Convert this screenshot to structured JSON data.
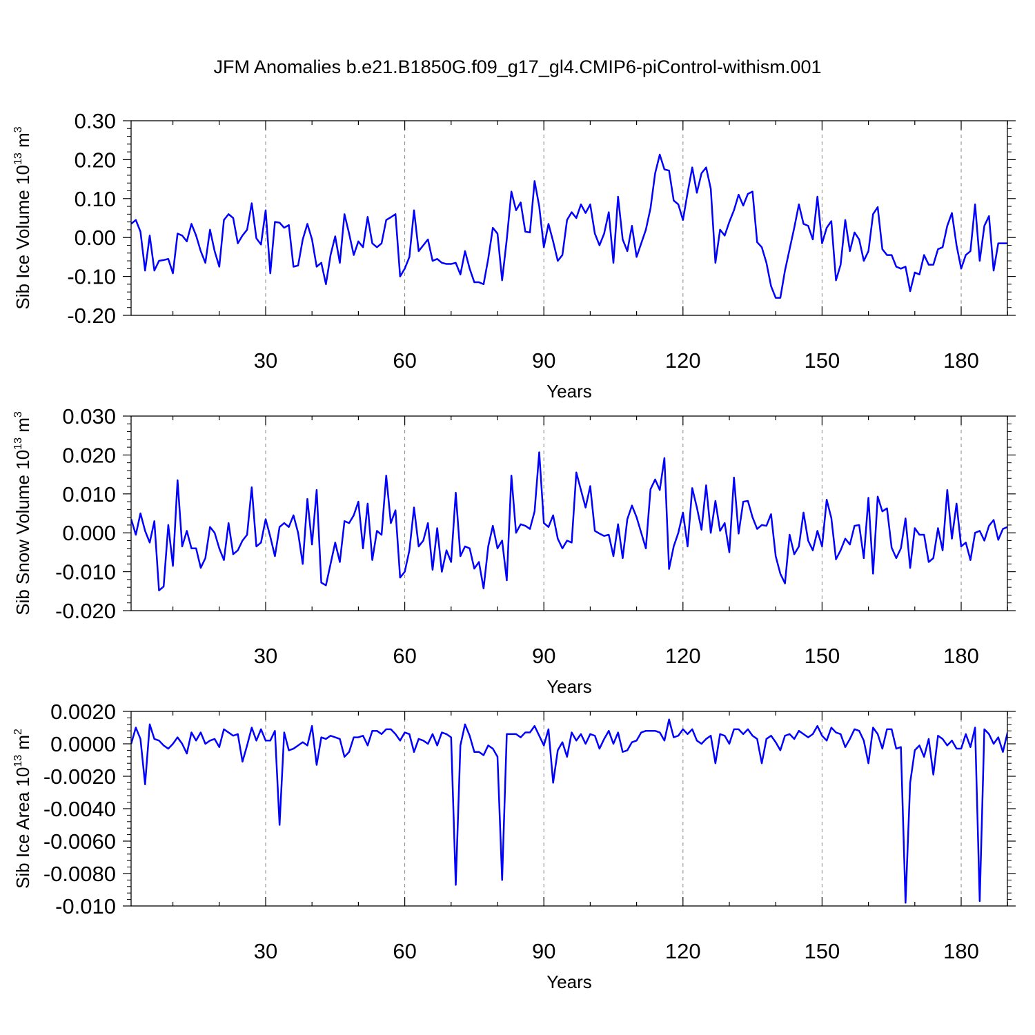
{
  "title": "JFM Anomalies b.e21.B1850G.f09_g17_gl4.CMIP6-piControl-withism.001",
  "colors": {
    "line": "#0000ff",
    "axis": "#000000",
    "grid": "#888888"
  },
  "chart_data": [
    {
      "type": "line",
      "title": "",
      "xlabel": "Years",
      "ylabel": "Sib Ice Volume 10^13 m^3",
      "ylabel_base": "Sib Ice Volume 10",
      "ylabel_exp": "13",
      "ylabel_unit": " m",
      "ylabel_unit_exp": "3",
      "xlim": [
        1,
        190
      ],
      "ylim": [
        -0.2,
        0.3
      ],
      "xticks": [
        30,
        60,
        90,
        120,
        150,
        180
      ],
      "xtick_labels": [
        "30",
        "60",
        "90",
        "120",
        "150",
        "180"
      ],
      "yticks": [
        -0.2,
        -0.1,
        0.0,
        0.1,
        0.2,
        0.3
      ],
      "ytick_labels": [
        "-0.20",
        "-0.10",
        "0.00",
        "0.10",
        "0.20",
        "0.30"
      ],
      "grid": "vertical dashed at x ticks",
      "x_start": 1,
      "values": [
        0.035,
        0.045,
        0.015,
        -0.085,
        0.005,
        -0.085,
        -0.06,
        -0.058,
        -0.055,
        -0.092,
        0.01,
        0.005,
        -0.01,
        0.035,
        0.005,
        -0.035,
        -0.065,
        0.02,
        -0.035,
        -0.075,
        0.045,
        0.06,
        0.05,
        -0.015,
        0.005,
        0.02,
        0.088,
        -0.002,
        -0.018,
        0.07,
        -0.092,
        0.04,
        0.038,
        0.025,
        0.032,
        -0.075,
        -0.072,
        -0.005,
        0.035,
        -0.005,
        -0.075,
        -0.065,
        -0.12,
        -0.045,
        0.003,
        -0.065,
        0.06,
        0.01,
        -0.045,
        -0.01,
        -0.025,
        0.053,
        -0.015,
        -0.025,
        -0.015,
        0.045,
        0.052,
        0.06,
        -0.1,
        -0.08,
        -0.05,
        0.07,
        -0.035,
        -0.02,
        -0.005,
        -0.06,
        -0.055,
        -0.065,
        -0.068,
        -0.068,
        -0.065,
        -0.095,
        -0.035,
        -0.08,
        -0.115,
        -0.115,
        -0.12,
        -0.055,
        0.025,
        0.01,
        -0.11,
        -0.005,
        0.118,
        0.07,
        0.09,
        0.015,
        0.013,
        0.145,
        0.08,
        -0.025,
        0.035,
        -0.01,
        -0.06,
        -0.045,
        0.045,
        0.065,
        0.05,
        0.085,
        0.063,
        0.085,
        0.01,
        -0.02,
        0.01,
        0.065,
        -0.065,
        0.105,
        -0.005,
        -0.035,
        0.03,
        -0.05,
        -0.015,
        0.02,
        0.075,
        0.165,
        0.213,
        0.175,
        0.172,
        0.095,
        0.085,
        0.045,
        0.115,
        0.18,
        0.115,
        0.165,
        0.18,
        0.125,
        -0.065,
        0.02,
        0.005,
        0.04,
        0.07,
        0.11,
        0.082,
        0.112,
        0.118,
        -0.012,
        -0.025,
        -0.065,
        -0.125,
        -0.155,
        -0.155,
        -0.085,
        -0.03,
        0.025,
        0.085,
        0.035,
        0.03,
        -0.005,
        0.105,
        -0.015,
        0.025,
        0.042,
        -0.11,
        -0.07,
        0.045,
        -0.035,
        0.013,
        -0.005,
        -0.06,
        -0.035,
        0.06,
        0.078,
        -0.03,
        -0.045,
        -0.045,
        -0.075,
        -0.08,
        -0.075,
        -0.138,
        -0.09,
        -0.095,
        -0.045,
        -0.07,
        -0.07,
        -0.03,
        -0.025,
        0.03,
        0.063,
        -0.02,
        -0.08,
        -0.045,
        -0.035,
        0.085,
        -0.06,
        0.03,
        0.055,
        -0.085,
        -0.015,
        -0.015,
        -0.015
      ]
    },
    {
      "type": "line",
      "title": "",
      "xlabel": "Years",
      "ylabel": "Sib Snow Volume 10^13 m^3",
      "ylabel_base": "Sib Snow Volume 10",
      "ylabel_exp": "13",
      "ylabel_unit": " m",
      "ylabel_unit_exp": "3",
      "xlim": [
        1,
        190
      ],
      "ylim": [
        -0.02,
        0.03
      ],
      "xticks": [
        30,
        60,
        90,
        120,
        150,
        180
      ],
      "xtick_labels": [
        "30",
        "60",
        "90",
        "120",
        "150",
        "180"
      ],
      "yticks": [
        -0.02,
        -0.01,
        0.0,
        0.01,
        0.02,
        0.03
      ],
      "ytick_labels": [
        "-0.020",
        "-0.010",
        "0.000",
        "0.010",
        "0.020",
        "0.030"
      ],
      "grid": "vertical dashed at x ticks",
      "x_start": 1,
      "values": [
        0.0035,
        -0.0005,
        0.005,
        0.0005,
        -0.0025,
        0.003,
        -0.0148,
        -0.0138,
        0.002,
        -0.0085,
        0.0135,
        -0.0035,
        0.0005,
        -0.004,
        -0.004,
        -0.009,
        -0.0065,
        0.0015,
        0.0,
        -0.004,
        -0.007,
        0.0025,
        -0.0055,
        -0.0045,
        -0.002,
        -0.0005,
        0.0117,
        -0.0035,
        -0.0025,
        0.0035,
        -0.001,
        -0.006,
        0.0015,
        0.0025,
        0.0015,
        0.0045,
        0.0,
        -0.008,
        0.0087,
        -0.003,
        0.011,
        -0.0128,
        -0.0135,
        -0.008,
        -0.0025,
        -0.0075,
        0.003,
        0.0025,
        0.0045,
        0.008,
        -0.004,
        0.0075,
        -0.007,
        0.0005,
        -0.0005,
        0.0147,
        0.0025,
        0.0058,
        -0.0115,
        -0.01,
        -0.0045,
        0.0065,
        -0.0035,
        -0.002,
        0.0025,
        -0.0095,
        0.0012,
        -0.01,
        -0.0045,
        -0.0075,
        0.0103,
        -0.006,
        -0.0035,
        -0.004,
        -0.0092,
        -0.0075,
        -0.0143,
        -0.0035,
        0.0018,
        -0.004,
        -0.002,
        -0.0122,
        0.0147,
        0.0,
        0.0022,
        0.0018,
        0.001,
        0.0055,
        0.0207,
        0.0025,
        0.0015,
        0.0045,
        -0.0015,
        -0.004,
        -0.002,
        -0.0025,
        0.0155,
        0.011,
        0.0065,
        0.012,
        0.0005,
        -0.0002,
        -0.0008,
        -0.0005,
        -0.006,
        0.0022,
        -0.0065,
        0.0035,
        0.007,
        0.004,
        0.0,
        -0.004,
        0.0112,
        0.0137,
        0.011,
        0.0192,
        -0.0093,
        -0.0035,
        0.0,
        0.0052,
        -0.0035,
        0.0115,
        0.0065,
        0.0008,
        0.0122,
        0.0,
        0.0082,
        0.0005,
        0.0025,
        -0.005,
        0.0142,
        -0.0002,
        0.008,
        0.0082,
        0.004,
        0.001,
        0.002,
        0.0018,
        0.0048,
        -0.006,
        -0.0105,
        -0.013,
        -0.0005,
        -0.0055,
        -0.0035,
        0.0052,
        -0.002,
        -0.0045,
        0.0005,
        -0.0035,
        0.0085,
        0.0038,
        -0.0068,
        -0.0045,
        -0.0015,
        -0.003,
        0.0018,
        0.002,
        -0.0065,
        0.009,
        -0.0105,
        0.0093,
        0.0055,
        0.0063,
        -0.0038,
        -0.0065,
        -0.004,
        0.0037,
        -0.009,
        0.0012,
        -0.0005,
        -0.0005,
        -0.0075,
        -0.0065,
        0.0012,
        -0.0045,
        0.011,
        -0.0015,
        0.0075,
        -0.0035,
        -0.0025,
        -0.007,
        0.0,
        0.0005,
        -0.002,
        0.0018,
        0.0033,
        -0.0018,
        0.001,
        0.0015
      ]
    },
    {
      "type": "line",
      "title": "",
      "xlabel": "Years",
      "ylabel": "Sib Ice Area 10^13 m^2",
      "ylabel_base": "Sib Ice Area 10",
      "ylabel_exp": "13",
      "ylabel_unit": " m",
      "ylabel_unit_exp": "2",
      "xlim": [
        1,
        190
      ],
      "ylim": [
        -0.01,
        0.002
      ],
      "xticks": [
        30,
        60,
        90,
        120,
        150,
        180
      ],
      "xtick_labels": [
        "30",
        "60",
        "90",
        "120",
        "150",
        "180"
      ],
      "yticks": [
        -0.01,
        -0.008,
        -0.006,
        -0.004,
        -0.002,
        0.0,
        0.002
      ],
      "ytick_labels": [
        "-0.010",
        "-0.0080",
        "-0.0060",
        "-0.0040",
        "-0.0020",
        "0.0000",
        "0.0020"
      ],
      "grid": "vertical dashed at x ticks",
      "x_start": 1,
      "values": [
        0.0,
        0.001,
        0.0003,
        -0.0025,
        0.0012,
        0.0003,
        0.0002,
        -0.0001,
        -0.0003,
        0.0,
        0.0004,
        0.0,
        -0.0006,
        0.0007,
        0.0002,
        0.0007,
        0.0,
        0.0002,
        0.0003,
        -0.0002,
        0.0009,
        0.0007,
        0.0005,
        0.0006,
        -0.0011,
        -0.0001,
        0.001,
        0.0002,
        0.0009,
        0.0002,
        0.0002,
        0.0008,
        -0.005,
        0.0007,
        -0.0004,
        -0.0003,
        -0.0001,
        0.0001,
        -0.0001,
        0.0011,
        -0.0013,
        0.0004,
        0.0003,
        0.0005,
        0.0004,
        0.0003,
        -0.0008,
        -0.0005,
        0.0004,
        0.0004,
        0.0005,
        -0.0001,
        0.0008,
        0.0008,
        0.0006,
        0.0009,
        0.0009,
        0.0006,
        0.0002,
        0.0007,
        0.0006,
        -0.0005,
        0.0003,
        0.0002,
        0.0,
        0.0006,
        -0.0001,
        0.0007,
        0.0006,
        0.0004,
        -0.0087,
        -0.0001,
        0.0012,
        0.0005,
        -0.0005,
        -0.0005,
        -0.0007,
        -0.0001,
        -0.0003,
        -0.0008,
        -0.0084,
        0.0006,
        0.0006,
        0.0006,
        0.0004,
        0.0007,
        0.0007,
        0.0011,
        0.0005,
        -0.0001,
        0.0009,
        -0.0024,
        -0.0004,
        0.0001,
        -0.0008,
        0.0007,
        0.0002,
        0.0006,
        0.0,
        0.0006,
        0.0005,
        -0.0003,
        0.0003,
        0.0008,
        0.0,
        0.0007,
        -0.0005,
        -0.0004,
        0.0001,
        0.0002,
        0.0007,
        0.0008,
        0.0008,
        0.0008,
        0.0007,
        0.0002,
        0.0015,
        0.0004,
        0.0005,
        0.0009,
        0.0006,
        0.0009,
        0.0002,
        0.0,
        0.0003,
        0.0005,
        -0.0012,
        0.0006,
        0.0005,
        0.0,
        0.0009,
        0.0009,
        0.0006,
        0.0009,
        0.0005,
        0.0003,
        -0.0012,
        0.0003,
        0.0005,
        0.0001,
        -0.0004,
        0.0005,
        0.0006,
        0.0003,
        0.0008,
        0.0006,
        0.0004,
        0.0006,
        0.0011,
        0.0005,
        0.0002,
        0.001,
        0.0007,
        0.0006,
        -0.0002,
        0.0003,
        0.0009,
        0.0008,
        0.0002,
        -0.0012,
        0.001,
        0.0006,
        -0.0003,
        0.0009,
        0.0009,
        -0.0003,
        -0.0002,
        -0.0098,
        -0.0024,
        -0.0004,
        -0.0001,
        -0.0008,
        0.0003,
        -0.0019,
        0.0005,
        0.0003,
        -0.0001,
        0.0002,
        -0.0003,
        -0.0003,
        0.0006,
        -0.0002,
        0.001,
        -0.0097,
        0.0009,
        0.0006,
        0.0,
        0.0004,
        -0.0005,
        0.0007
      ]
    }
  ]
}
